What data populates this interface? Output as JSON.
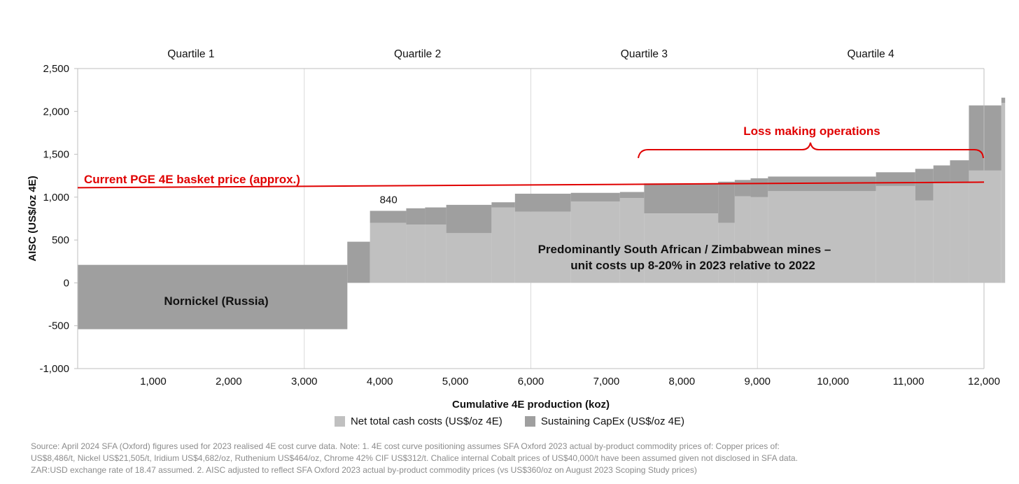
{
  "chart_data": {
    "type": "area",
    "subtype": "cost-curve",
    "xlabel": "Cumulative 4E production (koz)",
    "ylabel": "AISC (US$/oz 4E)",
    "xlim": [
      0,
      12000
    ],
    "ylim": [
      -1000,
      2500
    ],
    "x_ticks": [
      "1,000",
      "2,000",
      "3,000",
      "4,000",
      "5,000",
      "6,000",
      "7,000",
      "8,000",
      "9,000",
      "10,000",
      "11,000",
      "12,000"
    ],
    "y_ticks": [
      "2,500",
      "2,000",
      "1,500",
      "1,000",
      "500",
      "0",
      "-500",
      "-1,000"
    ],
    "quartiles": [
      "Quartile 1",
      "Quartile 2",
      "Quartile 3",
      "Quartile 4"
    ],
    "series": [
      {
        "name": "Net total cash costs (US$/oz 4E)",
        "color": "#c0c0c0"
      },
      {
        "name": "Sustaining CapEx (US$/oz 4E)",
        "color": "#9f9f9f"
      }
    ],
    "segments": [
      {
        "x0": 0,
        "x1": 3570,
        "cash": -540,
        "aisc": 210
      },
      {
        "x0": 3570,
        "x1": 3870,
        "cash": 0,
        "aisc": 480
      },
      {
        "x0": 3870,
        "x1": 4350,
        "cash": 700,
        "aisc": 840
      },
      {
        "x0": 4350,
        "x1": 4600,
        "cash": 680,
        "aisc": 870
      },
      {
        "x0": 4600,
        "x1": 4880,
        "cash": 680,
        "aisc": 880
      },
      {
        "x0": 4880,
        "x1": 5480,
        "cash": 580,
        "aisc": 910
      },
      {
        "x0": 5480,
        "x1": 5790,
        "cash": 880,
        "aisc": 940
      },
      {
        "x0": 5790,
        "x1": 6530,
        "cash": 830,
        "aisc": 1040
      },
      {
        "x0": 6530,
        "x1": 7180,
        "cash": 950,
        "aisc": 1050
      },
      {
        "x0": 7180,
        "x1": 7500,
        "cash": 990,
        "aisc": 1060
      },
      {
        "x0": 7500,
        "x1": 8480,
        "cash": 810,
        "aisc": 1160
      },
      {
        "x0": 8480,
        "x1": 8700,
        "cash": 700,
        "aisc": 1180
      },
      {
        "x0": 8700,
        "x1": 8910,
        "cash": 1010,
        "aisc": 1200
      },
      {
        "x0": 8910,
        "x1": 9140,
        "cash": 1000,
        "aisc": 1220
      },
      {
        "x0": 9140,
        "x1": 10570,
        "cash": 1070,
        "aisc": 1240
      },
      {
        "x0": 10570,
        "x1": 11090,
        "cash": 1130,
        "aisc": 1290
      },
      {
        "x0": 11090,
        "x1": 11330,
        "cash": 960,
        "aisc": 1330
      },
      {
        "x0": 11330,
        "x1": 11550,
        "cash": 1170,
        "aisc": 1370
      },
      {
        "x0": 11550,
        "x1": 11800,
        "cash": 1180,
        "aisc": 1430
      },
      {
        "x0": 11800,
        "x1": 12230,
        "cash": 1310,
        "aisc": 2070
      },
      {
        "x0": 12230,
        "x1": 12280,
        "cash": 2100,
        "aisc": 2160
      }
    ],
    "data_labels": [
      {
        "x": 4000,
        "y": 840,
        "text": "840"
      }
    ],
    "basket_price_line": {
      "x": [
        0,
        12280
      ],
      "y": [
        1110,
        1175
      ],
      "color": "#e00000"
    },
    "annotations": {
      "basket_price": "Current PGE 4E basket price (approx.)",
      "loss_making": "Loss making operations",
      "south_africa_line1": "Predominantly South African / Zimbabwean mines –",
      "south_africa_line2": "unit costs up 8-20% in 2023 relative to 2022",
      "nornickel": "Nornickel (Russia)"
    },
    "grid": "vertical at quartile boundaries",
    "legend_position": "bottom"
  },
  "footnote": {
    "line1": "Source: April 2024 SFA (Oxford) figures used for 2023 realised 4E cost curve data. Note: 1. 4E cost curve positioning assumes SFA Oxford 2023 actual by-product commodity prices of: Copper prices of:",
    "line2": "US$8,486/t, Nickel US$21,505/t, Iridium US$4,682/oz, Ruthenium US$464/oz, Chrome 42% CIF US$312/t. Chalice internal Cobalt prices of US$40,000/t have been assumed given not disclosed in SFA data.",
    "line3": "ZAR:USD exchange rate of 18.47 assumed. 2. AISC adjusted to reflect SFA Oxford 2023 actual by-product commodity prices (vs US$360/oz on August 2023 Scoping Study prices)"
  }
}
